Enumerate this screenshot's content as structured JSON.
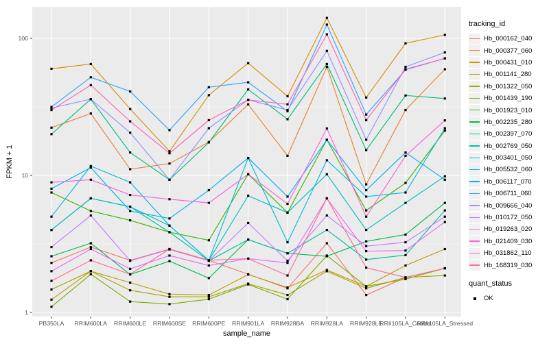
{
  "chart_data": {
    "type": "line",
    "title": "",
    "xlabel": "sample_name",
    "ylabel": "FPKM + 1",
    "y_scale": "log10",
    "y_ticks": [
      1,
      10,
      100
    ],
    "y_minor_breaks": [
      3.1623,
      31.623
    ],
    "ylim": [
      1,
      170
    ],
    "grid": "on",
    "legend_position": "right",
    "legend_title": "tracking_id",
    "quant_status_title": "quant_status",
    "quant_status_items": [
      {
        "label": "OK",
        "marker": "black-point"
      }
    ],
    "panel_bg": "#EBEBEB",
    "grid_color": "#FFFFFF",
    "tick_text_color": "#4D4D4D",
    "point_color": "#000000",
    "categories": [
      "PB350LA",
      "RRIM600LA",
      "RRIM600LE",
      "RRIM600SE",
      "RRIM600PE",
      "RRIM901LA",
      "RRIM928BA",
      "RRIM928LA",
      "RRIM928LE",
      "RRII105LA_Control",
      "RRII105LA_Stressed"
    ],
    "series": [
      {
        "name": "Hb_000162_040",
        "color": "#F8766D",
        "values": [
          2.3,
          3.0,
          2.4,
          2.9,
          2.4,
          1.9,
          1.5,
          3.2,
          1.34,
          1.8,
          2.1
        ]
      },
      {
        "name": "Hb_000377_060",
        "color": "#EA8331",
        "values": [
          22.3,
          28.3,
          11.1,
          12.2,
          17.5,
          33,
          13.9,
          62,
          8.6,
          30,
          59.5
        ]
      },
      {
        "name": "Hb_000431_010",
        "color": "#D89000",
        "values": [
          60,
          65,
          30.5,
          15,
          38.5,
          66,
          37.8,
          141,
          37,
          92,
          106
        ]
      },
      {
        "name": "Hb_001141_280",
        "color": "#C09B00",
        "values": [
          1.24,
          2.0,
          1.65,
          1.36,
          1.34,
          1.89,
          1.52,
          2.04,
          1.55,
          2.2,
          2.9
        ]
      },
      {
        "name": "Hb_001322_050",
        "color": "#A3A500",
        "values": [
          1.47,
          2.0,
          1.45,
          1.3,
          1.3,
          1.62,
          1.34,
          2.0,
          1.5,
          1.8,
          1.86
        ]
      },
      {
        "name": "Hb_001439_190",
        "color": "#7CAE00",
        "values": [
          1.1,
          1.9,
          1.2,
          1.15,
          1.25,
          1.6,
          1.25,
          2.6,
          1.55,
          1.75,
          2.1
        ]
      },
      {
        "name": "Hb_001923_010",
        "color": "#39B600",
        "values": [
          7.5,
          5.5,
          4.7,
          3.85,
          3.36,
          10.2,
          5.35,
          18.2,
          5.55,
          8.8,
          21.2
        ]
      },
      {
        "name": "Hb_002235_280",
        "color": "#00BB4E",
        "values": [
          2.57,
          3.2,
          1.89,
          2.37,
          1.78,
          3.4,
          2.7,
          2.57,
          3.3,
          3.7,
          6.3
        ]
      },
      {
        "name": "Hb_002397_070",
        "color": "#00BF7D",
        "values": [
          20,
          36,
          14.7,
          9.3,
          17.4,
          42.4,
          25.7,
          65,
          15.3,
          38.3,
          36.4
        ]
      },
      {
        "name": "Hb_002769_050",
        "color": "#00C1A3",
        "values": [
          4.0,
          6.8,
          5.9,
          3.85,
          2.38,
          3.4,
          2.7,
          4.0,
          2.43,
          2.62,
          5.55
        ]
      },
      {
        "name": "Hb_003401_050",
        "color": "#00BFC4",
        "values": [
          4.0,
          6.8,
          5.9,
          4.3,
          2.4,
          7.1,
          5.35,
          10.2,
          4.0,
          6.3,
          9.85
        ]
      },
      {
        "name": "Hb_005532_060",
        "color": "#00BAE0",
        "values": [
          5.0,
          11.7,
          8.9,
          4.3,
          2.4,
          13.4,
          3.25,
          12.9,
          7.0,
          7.5,
          22.1
        ]
      },
      {
        "name": "Hb_006117_070",
        "color": "#00B0F6",
        "values": [
          8.0,
          11.4,
          5.5,
          4.85,
          7.8,
          13.4,
          7.0,
          18.2,
          7.8,
          14.7,
          9.3
        ]
      },
      {
        "name": "Hb_006711_060",
        "color": "#35A2FF",
        "values": [
          31.6,
          52,
          41,
          21.4,
          44,
          47.8,
          29.4,
          126,
          27.8,
          59,
          71.5
        ]
      },
      {
        "name": "Hb_009666_040",
        "color": "#9590FF",
        "values": [
          31,
          36,
          20.5,
          9.3,
          22.1,
          35.6,
          30,
          81,
          18.2,
          62,
          79
        ]
      },
      {
        "name": "Hb_010172_050",
        "color": "#C77CFF",
        "values": [
          3.0,
          5.1,
          2.38,
          2.88,
          2.38,
          4.5,
          2.38,
          5.1,
          3.05,
          3.25,
          5.0
        ]
      },
      {
        "name": "Hb_019263_020",
        "color": "#E76BF3",
        "values": [
          2.0,
          2.9,
          2.08,
          2.6,
          2.2,
          2.47,
          2.3,
          6.8,
          2.8,
          2.83,
          4.57
        ]
      },
      {
        "name": "Hb_021409_030",
        "color": "#FA62DB",
        "values": [
          8.9,
          9.3,
          7.2,
          6.7,
          6.3,
          10.2,
          6.2,
          22,
          5.0,
          13.9,
          25.2
        ]
      },
      {
        "name": "Hb_031862_110",
        "color": "#FF62BC",
        "values": [
          30,
          45.6,
          24.8,
          14.5,
          25.3,
          35.6,
          33,
          107,
          25.3,
          59.5,
          71.5
        ]
      },
      {
        "name": "Hb_168319_030",
        "color": "#FF6A98",
        "values": [
          1.7,
          2.4,
          1.9,
          2.9,
          2.4,
          2.47,
          1.86,
          6.8,
          2.12,
          1.8,
          2.1
        ]
      }
    ]
  }
}
